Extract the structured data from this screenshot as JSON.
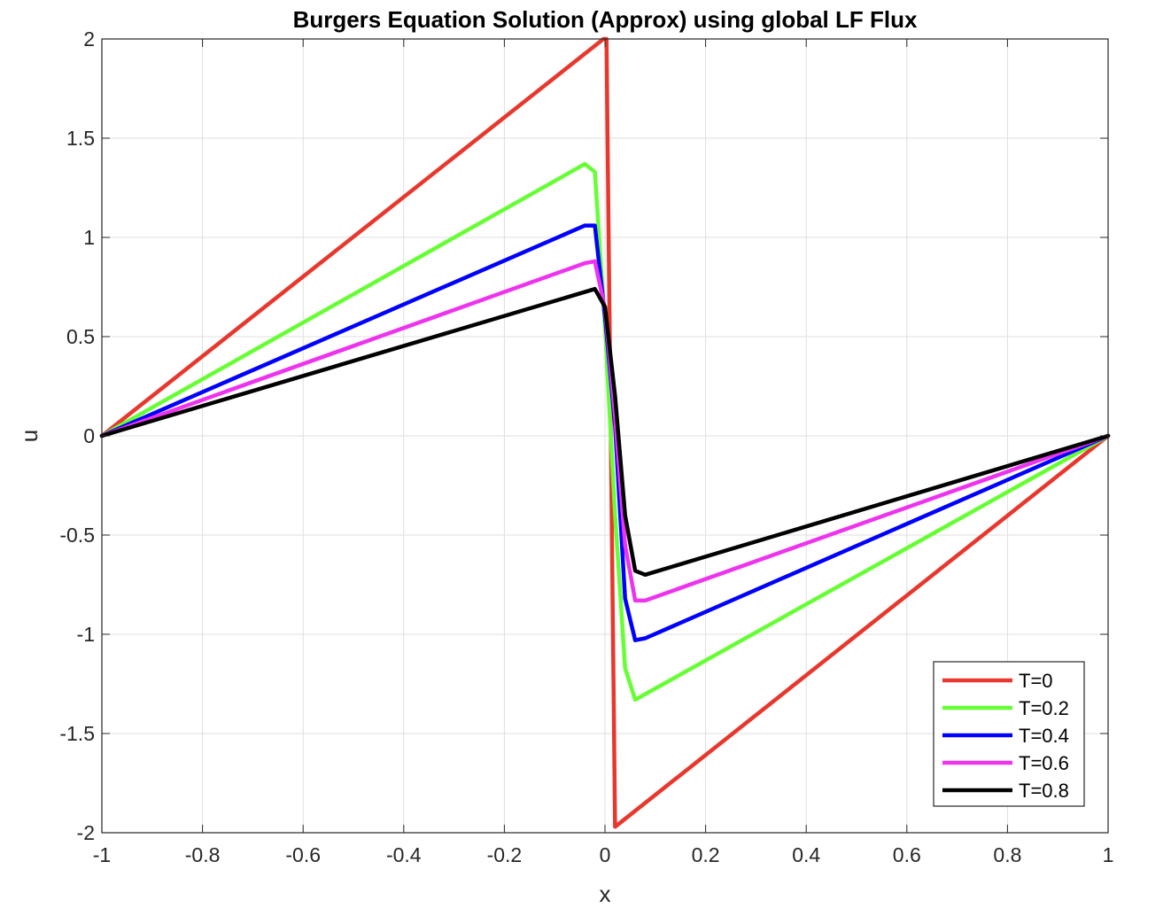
{
  "chart_data": {
    "type": "line",
    "title": "Burgers Equation Solution (Approx) using global LF Flux",
    "xlabel": "x",
    "ylabel": "u",
    "xlim": [
      -1,
      1
    ],
    "ylim": [
      -2,
      2
    ],
    "xticks": [
      "-1",
      "-0.8",
      "-0.6",
      "-0.4",
      "-0.2",
      "0",
      "0.2",
      "0.4",
      "0.6",
      "0.8",
      "1"
    ],
    "yticks": [
      "-2",
      "-1.5",
      "-1",
      "-0.5",
      "0",
      "0.5",
      "1",
      "1.5",
      "2"
    ],
    "grid": true,
    "legend_position": "bottom-right",
    "series": [
      {
        "name": "T=0",
        "color": "#e8372c",
        "points": [
          [
            -1,
            0
          ],
          [
            -0.003,
            2.0
          ],
          [
            0.003,
            2.0
          ],
          [
            0.02,
            -1.97
          ],
          [
            1,
            0
          ]
        ]
      },
      {
        "name": "T=0.2",
        "color": "#66ff33",
        "points": [
          [
            -1,
            0
          ],
          [
            -0.04,
            1.37
          ],
          [
            -0.02,
            1.33
          ],
          [
            0.0,
            0.55
          ],
          [
            0.02,
            -0.4
          ],
          [
            0.04,
            -1.17
          ],
          [
            0.06,
            -1.33
          ],
          [
            1,
            0
          ]
        ]
      },
      {
        "name": "T=0.4",
        "color": "#0000ff",
        "points": [
          [
            -1,
            0
          ],
          [
            -0.04,
            1.06
          ],
          [
            -0.02,
            1.06
          ],
          [
            0.0,
            0.6
          ],
          [
            0.02,
            0.05
          ],
          [
            0.04,
            -0.82
          ],
          [
            0.06,
            -1.03
          ],
          [
            0.08,
            -1.02
          ],
          [
            1,
            0
          ]
        ]
      },
      {
        "name": "T=0.6",
        "color": "#ee33ee",
        "points": [
          [
            -1,
            0
          ],
          [
            -0.04,
            0.87
          ],
          [
            -0.02,
            0.88
          ],
          [
            0.0,
            0.64
          ],
          [
            0.02,
            0.1
          ],
          [
            0.04,
            -0.55
          ],
          [
            0.06,
            -0.83
          ],
          [
            0.08,
            -0.83
          ],
          [
            1,
            0
          ]
        ]
      },
      {
        "name": "T=0.8",
        "color": "#000000",
        "points": [
          [
            -1,
            0
          ],
          [
            -0.02,
            0.74
          ],
          [
            0.0,
            0.65
          ],
          [
            0.02,
            0.2
          ],
          [
            0.04,
            -0.4
          ],
          [
            0.06,
            -0.68
          ],
          [
            0.08,
            -0.7
          ],
          [
            1,
            0
          ]
        ]
      }
    ]
  }
}
